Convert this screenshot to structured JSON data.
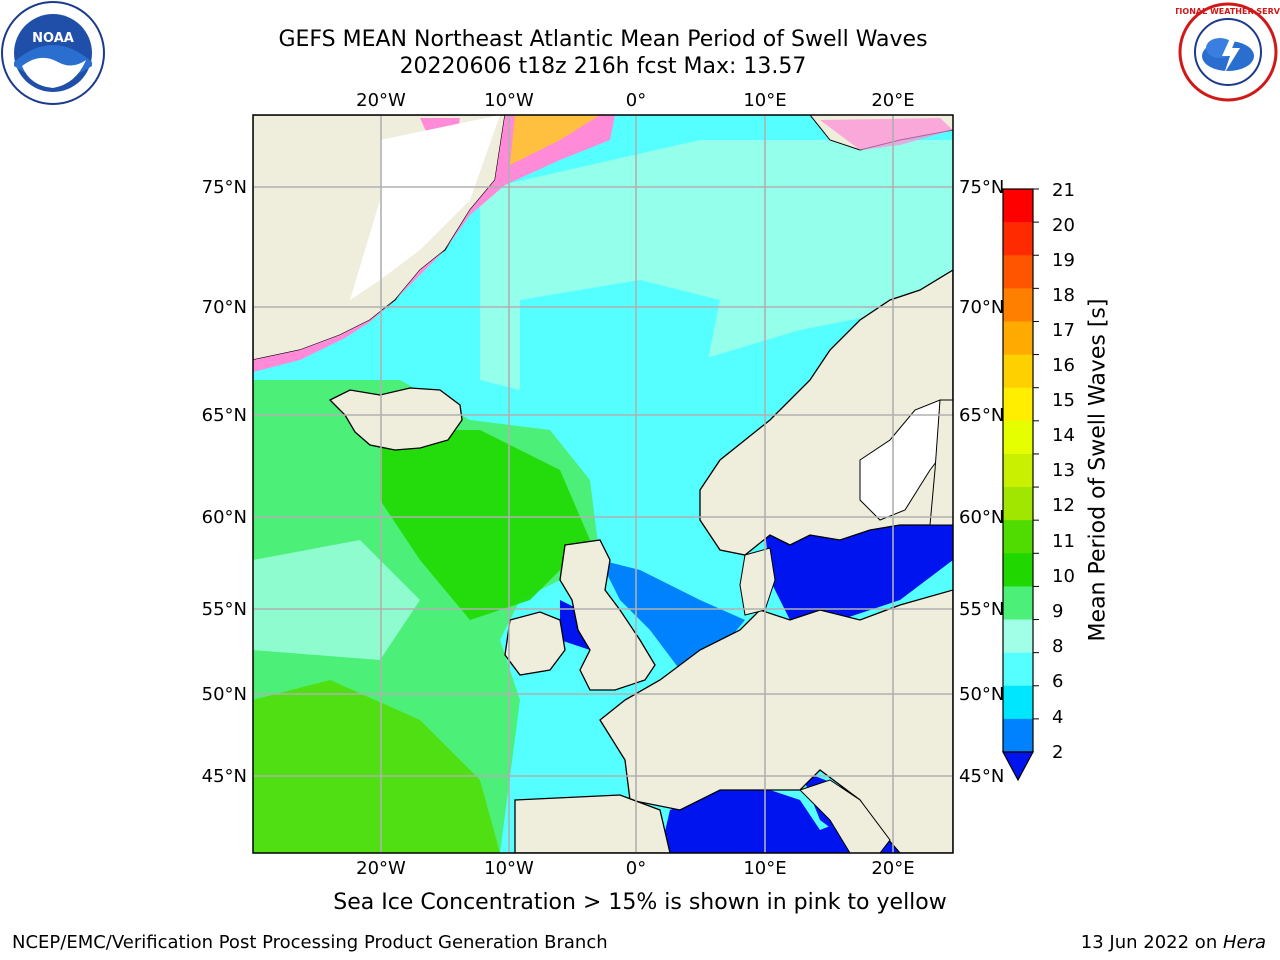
{
  "header": {
    "title_line1": "GEFS MEAN Northeast Atlantic Mean Period of Swell Waves",
    "title_line2": "20220606 t18z 216h fcst   Max: 13.57"
  },
  "logos": {
    "left": "noaa-logo",
    "right": "national-weather-service-logo",
    "right_text": "NATIONAL WEATHER SERVICE",
    "left_text": "NOAA"
  },
  "map": {
    "lon_labels_top": [
      "20°W",
      "10°W",
      "0°",
      "10°E",
      "20°E"
    ],
    "lon_labels_bottom": [
      "20°W",
      "10°W",
      "0°",
      "10°E",
      "20°E"
    ],
    "lat_labels_left": [
      "75°N",
      "70°N",
      "65°N",
      "60°N",
      "55°N",
      "50°N",
      "45°N"
    ],
    "lat_labels_right": [
      "75°N",
      "70°N",
      "65°N",
      "60°N",
      "55°N",
      "50°N",
      "45°N"
    ],
    "colors": {
      "land": "#efeddc",
      "grid": "#b0b0b0",
      "coast": "#000000"
    }
  },
  "colorbar": {
    "title": "Mean Period of Swell Waves [s]",
    "ticks": [
      "21",
      "20",
      "19",
      "18",
      "17",
      "16",
      "15",
      "14",
      "13",
      "12",
      "11",
      "10",
      "9",
      "8",
      "6",
      "4",
      "2"
    ],
    "colors": [
      "#ff0000",
      "#ff2a00",
      "#ff5500",
      "#ff8000",
      "#ffaa00",
      "#ffd000",
      "#ffee00",
      "#e6ff00",
      "#c8f000",
      "#a0e600",
      "#50dc00",
      "#20d800",
      "#4cf078",
      "#a0ffe6",
      "#55ffff",
      "#00e6ff",
      "#0082ff",
      "#0014f0"
    ]
  },
  "notes": {
    "sea_ice": "Sea Ice Concentration > 15% is shown in pink to yellow",
    "footer_left": "NCEP/EMC/Verification Post Processing Product Generation Branch",
    "footer_right_prefix": "13 Jun 2022 on ",
    "footer_right_host": "Hera"
  }
}
